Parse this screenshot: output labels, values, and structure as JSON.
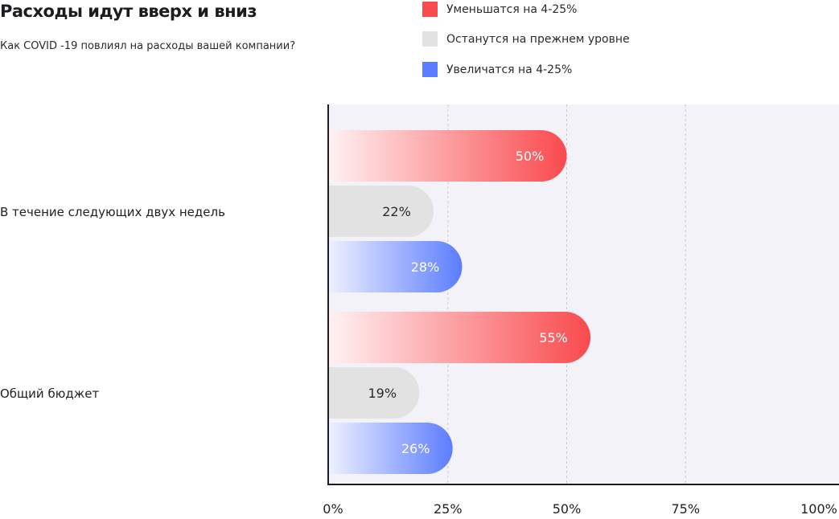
{
  "chart_data": {
    "type": "bar",
    "orientation": "horizontal",
    "title": "Расходы идут вверх и вниз",
    "subtitle": "Как COVID -19 повлиял на расходы вашей компании?",
    "categories": [
      "В течение следующих двух недель",
      "Общий бюджет"
    ],
    "series": [
      {
        "name": "Уменьшатся на 4-25%",
        "color": "#f94a4d",
        "values": [
          50,
          55
        ],
        "labels": [
          "50%",
          "55%"
        ]
      },
      {
        "name": "Останутся на прежнем уровне",
        "color": "#e2e2e2",
        "values": [
          22,
          19
        ],
        "labels": [
          "22%",
          "19%"
        ]
      },
      {
        "name": "Увеличатся на 4-25%",
        "color": "#5c7dff",
        "values": [
          28,
          26
        ],
        "labels": [
          "28%",
          "26%"
        ]
      }
    ],
    "xlim": [
      0,
      100
    ],
    "xticks": [
      "0%",
      "25%",
      "50%",
      "75%",
      "100%"
    ],
    "grid": true,
    "legend_position": "top"
  }
}
